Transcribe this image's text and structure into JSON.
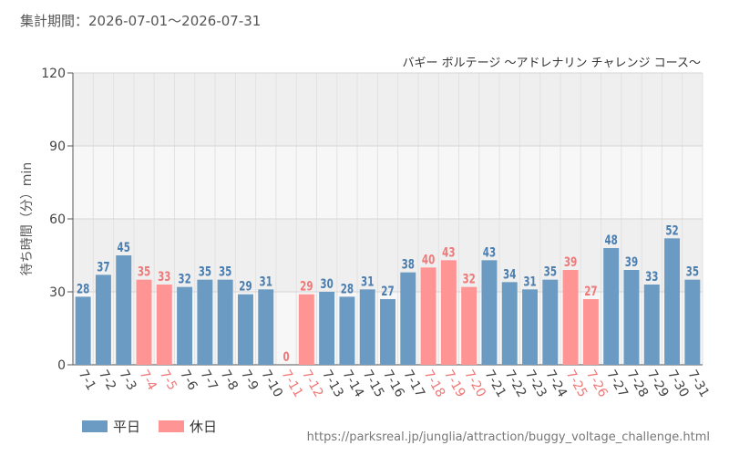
{
  "period_label": "集計期間：2026-07-01～2026-07-31",
  "y_axis_title": "待ち時間（分）min",
  "legend": {
    "weekday": "平日",
    "holiday": "休日"
  },
  "source_url": "https://parksreal.jp/junglia/attraction/buggy_voltage_challenge.html",
  "colors": {
    "weekday": "#6b9bc3",
    "holiday": "#ff9494",
    "weekday_label": "#4a7eb0",
    "holiday_label": "#f07878",
    "plot_bg": "#f7f7f7",
    "band": "#efefef"
  },
  "chart_data": {
    "type": "bar",
    "title": "バギー ボルテージ ～アドレナリン チャレンジ コース～",
    "xlabel": "",
    "ylabel": "待ち時間（分）min",
    "ylim": [
      0,
      120
    ],
    "yticks": [
      0,
      30,
      60,
      90,
      120
    ],
    "grid": true,
    "legend_position": "bottom-left",
    "categories": [
      "7-1",
      "7-2",
      "7-3",
      "7-4",
      "7-5",
      "7-6",
      "7-7",
      "7-8",
      "7-9",
      "7-10",
      "7-11",
      "7-12",
      "7-13",
      "7-14",
      "7-15",
      "7-16",
      "7-17",
      "7-18",
      "7-19",
      "7-20",
      "7-21",
      "7-22",
      "7-23",
      "7-24",
      "7-25",
      "7-26",
      "7-27",
      "7-28",
      "7-29",
      "7-30",
      "7-31"
    ],
    "values": [
      28,
      37,
      45,
      35,
      33,
      32,
      35,
      35,
      29,
      31,
      0,
      29,
      30,
      28,
      31,
      27,
      38,
      40,
      43,
      32,
      43,
      34,
      31,
      35,
      39,
      27,
      48,
      39,
      33,
      52,
      35
    ],
    "holiday": [
      false,
      false,
      false,
      true,
      true,
      false,
      false,
      false,
      false,
      false,
      true,
      true,
      false,
      false,
      false,
      false,
      false,
      true,
      true,
      true,
      false,
      false,
      false,
      false,
      true,
      true,
      false,
      false,
      false,
      false,
      false
    ]
  }
}
